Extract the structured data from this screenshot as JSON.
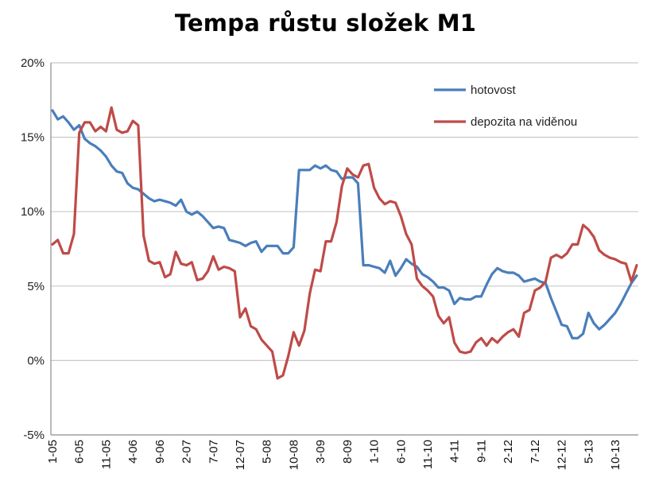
{
  "chart_data": {
    "type": "line",
    "title": "Tempa růstu složek M1",
    "xlabel": "",
    "ylabel": "",
    "ylim": [
      -5,
      20
    ],
    "yticks": [
      {
        "value": -5,
        "label": "-5%"
      },
      {
        "value": 0,
        "label": "0%"
      },
      {
        "value": 5,
        "label": "5%"
      },
      {
        "value": 10,
        "label": "10%"
      },
      {
        "value": 15,
        "label": "15%"
      },
      {
        "value": 20,
        "label": "20%"
      }
    ],
    "xticks": [
      {
        "index": 0,
        "label": "1-05"
      },
      {
        "index": 5,
        "label": "6-05"
      },
      {
        "index": 10,
        "label": "11-05"
      },
      {
        "index": 15,
        "label": "4-06"
      },
      {
        "index": 20,
        "label": "9-06"
      },
      {
        "index": 25,
        "label": "2-07"
      },
      {
        "index": 30,
        "label": "7-07"
      },
      {
        "index": 35,
        "label": "12-07"
      },
      {
        "index": 40,
        "label": "5-08"
      },
      {
        "index": 45,
        "label": "10-08"
      },
      {
        "index": 50,
        "label": "3-09"
      },
      {
        "index": 55,
        "label": "8-09"
      },
      {
        "index": 60,
        "label": "1-10"
      },
      {
        "index": 65,
        "label": "6-10"
      },
      {
        "index": 70,
        "label": "11-10"
      },
      {
        "index": 75,
        "label": "4-11"
      },
      {
        "index": 80,
        "label": "9-11"
      },
      {
        "index": 85,
        "label": "2-12"
      },
      {
        "index": 90,
        "label": "7-12"
      },
      {
        "index": 95,
        "label": "12-12"
      },
      {
        "index": 100,
        "label": "5-13"
      },
      {
        "index": 105,
        "label": "10-13"
      }
    ],
    "grid": true,
    "legend_position": "top-right",
    "series": [
      {
        "name": "hotovost",
        "color": "#4a7ebb",
        "values": [
          16.8,
          16.2,
          16.4,
          16.0,
          15.5,
          15.8,
          14.9,
          14.6,
          14.4,
          14.1,
          13.7,
          13.1,
          12.7,
          12.6,
          11.9,
          11.6,
          11.5,
          11.2,
          10.9,
          10.7,
          10.8,
          10.7,
          10.6,
          10.4,
          10.8,
          10.0,
          9.8,
          10.0,
          9.7,
          9.3,
          8.9,
          9.0,
          8.9,
          8.1,
          8.0,
          7.9,
          7.7,
          7.9,
          8.0,
          7.3,
          7.7,
          7.7,
          7.7,
          7.2,
          7.2,
          7.6,
          12.8,
          12.8,
          12.8,
          13.1,
          12.9,
          13.1,
          12.8,
          12.7,
          12.2,
          12.3,
          12.3,
          11.9,
          6.4,
          6.4,
          6.3,
          6.2,
          5.9,
          6.7,
          5.7,
          6.2,
          6.8,
          6.5,
          6.3,
          5.8,
          5.6,
          5.3,
          4.9,
          4.9,
          4.7,
          3.8,
          4.2,
          4.1,
          4.1,
          4.3,
          4.3,
          5.1,
          5.8,
          6.2,
          6.0,
          5.9,
          5.9,
          5.7,
          5.3,
          5.4,
          5.5,
          5.3,
          5.2,
          4.2,
          3.3,
          2.4,
          2.3,
          1.5,
          1.5,
          1.8,
          3.2,
          2.5,
          2.1,
          2.4,
          2.8,
          3.2,
          3.8,
          4.5,
          5.2,
          5.7
        ]
      },
      {
        "name": "depozita na viděnou",
        "color": "#be4b48",
        "values": [
          7.8,
          8.1,
          7.2,
          7.2,
          8.5,
          15.3,
          16.0,
          16.0,
          15.4,
          15.7,
          15.4,
          17.0,
          15.5,
          15.3,
          15.4,
          16.1,
          15.8,
          8.4,
          6.7,
          6.5,
          6.6,
          5.6,
          5.8,
          7.3,
          6.5,
          6.4,
          6.6,
          5.4,
          5.5,
          6.0,
          7.0,
          6.1,
          6.3,
          6.2,
          6.0,
          2.9,
          3.5,
          2.3,
          2.1,
          1.4,
          1.0,
          0.6,
          -1.2,
          -1.0,
          0.3,
          1.9,
          1.0,
          2.0,
          4.5,
          6.1,
          6.0,
          8.0,
          8.0,
          9.3,
          11.7,
          12.9,
          12.5,
          12.3,
          13.1,
          13.2,
          11.6,
          10.9,
          10.5,
          10.7,
          10.6,
          9.7,
          8.5,
          7.8,
          5.5,
          5.0,
          4.7,
          4.3,
          3.0,
          2.5,
          2.9,
          1.2,
          0.6,
          0.5,
          0.6,
          1.2,
          1.5,
          1.0,
          1.5,
          1.2,
          1.6,
          1.9,
          2.1,
          1.6,
          3.2,
          3.4,
          4.7,
          4.9,
          5.3,
          6.9,
          7.1,
          6.9,
          7.2,
          7.8,
          7.8,
          9.1,
          8.8,
          8.3,
          7.4,
          7.1,
          6.9,
          6.8,
          6.6,
          6.5,
          5.3,
          6.4
        ]
      }
    ]
  }
}
